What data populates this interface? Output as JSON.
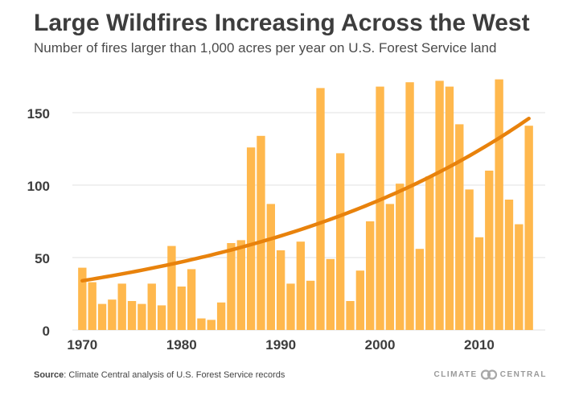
{
  "header": {
    "title": "Large Wildfires Increasing Across the West",
    "subtitle": "Number of fires larger than 1,000 acres per year on U.S. Forest Service land"
  },
  "footer": {
    "source_label": "Source",
    "source_text": ": Climate Central analysis of U.S. Forest Service records",
    "logo_left": "CLIMATE",
    "logo_right": "CENTRAL"
  },
  "colors": {
    "bar": "#ffb84d",
    "trend": "#e8820c",
    "grid": "#e2e2e2",
    "axis_text": "#3d3d3d"
  },
  "chart_data": {
    "type": "bar",
    "title": "Large Wildfires Increasing Across the West",
    "xlabel": "",
    "ylabel": "",
    "x": [
      1970,
      1971,
      1972,
      1973,
      1974,
      1975,
      1976,
      1977,
      1978,
      1979,
      1980,
      1981,
      1982,
      1983,
      1984,
      1985,
      1986,
      1987,
      1988,
      1989,
      1990,
      1991,
      1992,
      1993,
      1994,
      1995,
      1996,
      1997,
      1998,
      1999,
      2000,
      2001,
      2002,
      2003,
      2004,
      2005,
      2006,
      2007,
      2008,
      2009,
      2010,
      2011,
      2012,
      2013,
      2014,
      2015
    ],
    "values": [
      43,
      33,
      18,
      21,
      32,
      20,
      18,
      32,
      17,
      58,
      30,
      42,
      8,
      7,
      19,
      60,
      62,
      126,
      134,
      87,
      55,
      32,
      61,
      34,
      167,
      49,
      122,
      20,
      41,
      75,
      168,
      87,
      101,
      171,
      56,
      106,
      172,
      168,
      142,
      97,
      64,
      110,
      173,
      90,
      73,
      141
    ],
    "trend": {
      "type": "exponential",
      "start": 34,
      "end": 146
    },
    "xticks": [
      "1970",
      "1980",
      "1990",
      "2000",
      "2010"
    ],
    "yticks": [
      "0",
      "50",
      "100",
      "150"
    ],
    "xlim": [
      1969,
      2016
    ],
    "ylim": [
      0,
      175
    ],
    "grid": true
  }
}
